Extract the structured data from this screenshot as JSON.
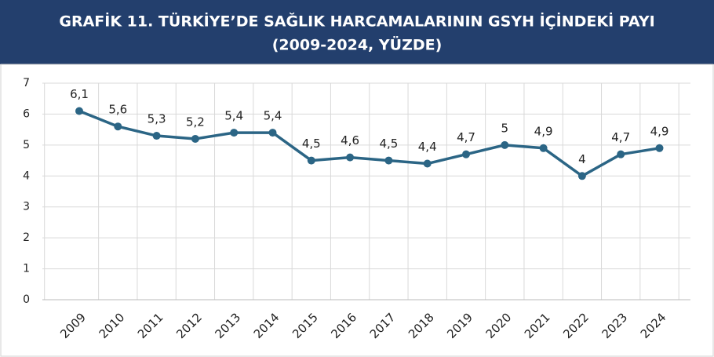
{
  "chart_data": {
    "type": "line",
    "title": [
      "GRAFİK 11. TÜRKİYE’DE SAĞLIK HARCAMALARININ GSYH İÇİNDEKİ PAYI",
      "(2009-2024, YÜZDE)"
    ],
    "categories": [
      "2009",
      "2010",
      "2011",
      "2012",
      "2013",
      "2014",
      "2015",
      "2016",
      "2017",
      "2018",
      "2019",
      "2020",
      "2021",
      "2022",
      "2023",
      "2024"
    ],
    "values": [
      6.1,
      5.6,
      5.3,
      5.2,
      5.4,
      5.4,
      4.5,
      4.6,
      4.5,
      4.4,
      4.7,
      5,
      4.9,
      4,
      4.7,
      4.9
    ],
    "value_labels": [
      "6,1",
      "5,6",
      "5,3",
      "5,2",
      "5,4",
      "5,4",
      "4,5",
      "4,6",
      "4,5",
      "4,4",
      "4,7",
      "5",
      "4,9",
      "4",
      "4,7",
      "4,9"
    ],
    "color": "#2b6585",
    "ylim": [
      0,
      7
    ],
    "yticks": [
      0,
      1,
      2,
      3,
      4,
      5,
      6,
      7
    ],
    "grid": true
  }
}
